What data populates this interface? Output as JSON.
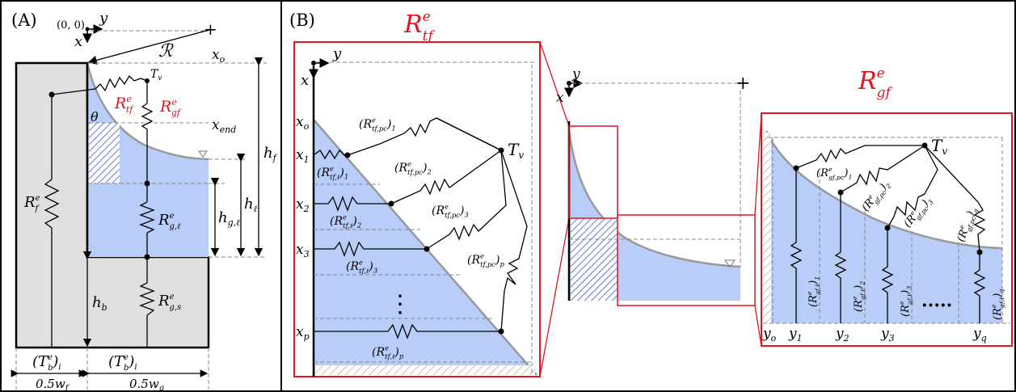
{
  "panels": {
    "a": "(A)",
    "b": "(B)"
  },
  "colors": {
    "fluid": "#b8cdf7",
    "wall": "#e0e0e0",
    "red": "#e8121d",
    "grid": "#888888"
  },
  "panel_a": {
    "origin": "(0, 0)",
    "x": "x",
    "y": "y",
    "R": "ℛ",
    "Tv": "T",
    "Tv_sub": "v",
    "Rtf": "R",
    "Rtf_sub": "tf",
    "Rgf": "R",
    "Rgf_sub": "gf",
    "theta": "θ",
    "xo": "x",
    "xo_sub": "o",
    "xend": "x",
    "xend_sub": "end",
    "hf": "h",
    "hf_sub": "f",
    "hl": "h",
    "hl_sub": "ℓ",
    "hgl": "h",
    "hgl_sub": "g,ℓ",
    "hb": "h",
    "hb_sub": "b",
    "Rf": "R",
    "Rf_sub": "f",
    "Rgl": "R",
    "Rgl_sub": "g,ℓ",
    "Rgs": "R",
    "Rgs_sub": "g,s",
    "Tb1": "(T",
    "Tb1_sub": "b",
    "Tb1_end": ")",
    "Tb1_i": "i",
    "Tb2": "(T",
    "Tb2_sub": "b",
    "Tb2_end": ")",
    "Tb2_i": "i",
    "wf": "0.5w",
    "wf_sub": "f",
    "wg": "0.5w",
    "wg_sub": "g",
    "e": "e"
  },
  "panel_b": {
    "Rtf_title": "R",
    "Rtf_title_sub": "tf",
    "Rgf_title": "R",
    "Rgf_title_sub": "gf",
    "x": "x",
    "y": "y",
    "Tv": "T",
    "Tv_sub": "v",
    "x_ticks": [
      {
        "t": "x",
        "s": "o"
      },
      {
        "t": "x",
        "s": "1"
      },
      {
        "t": "x",
        "s": "2"
      },
      {
        "t": "x",
        "s": "3"
      },
      {
        "t": "x",
        "s": "p"
      }
    ],
    "y_ticks": [
      {
        "t": "y",
        "s": "o"
      },
      {
        "t": "y",
        "s": "1"
      },
      {
        "t": "y",
        "s": "2"
      },
      {
        "t": "y",
        "s": "3"
      },
      {
        "t": "y",
        "s": "q"
      }
    ],
    "tf_pc": [
      {
        "main": "(R",
        "sub": "tf,pc",
        "idx": "1"
      },
      {
        "main": "(R",
        "sub": "tf,pc",
        "idx": "2"
      },
      {
        "main": "(R",
        "sub": "tf,pc",
        "idx": "3"
      },
      {
        "main": "(R",
        "sub": "tf,pc",
        "idx": "p"
      }
    ],
    "tf_l": [
      {
        "main": "(R",
        "sub": "tf,ℓ",
        "idx": "1"
      },
      {
        "main": "(R",
        "sub": "tf,ℓ",
        "idx": "2"
      },
      {
        "main": "(R",
        "sub": "tf,ℓ",
        "idx": "3"
      },
      {
        "main": "(R",
        "sub": "tf,ℓ",
        "idx": "p"
      }
    ],
    "gf_pc": [
      {
        "main": "(R",
        "sub": "gf,pc",
        "idx": "1"
      },
      {
        "main": "(R",
        "sub": "gf,pc",
        "idx": "2"
      },
      {
        "main": "(R",
        "sub": "gf,pc",
        "idx": "3"
      },
      {
        "main": "(R",
        "sub": "gf,pc",
        "idx": "q"
      }
    ],
    "gf_l": [
      {
        "main": "(R",
        "sub": "gf,ℓ",
        "idx": "1"
      },
      {
        "main": "(R",
        "sub": "gf,ℓ",
        "idx": "2"
      },
      {
        "main": "(R",
        "sub": "gf,ℓ",
        "idx": "3"
      },
      {
        "main": "(R",
        "sub": "gf,ℓ",
        "idx": "q"
      }
    ],
    "dots_v": "⋮",
    "dots_h": "·····",
    "e": "e"
  }
}
